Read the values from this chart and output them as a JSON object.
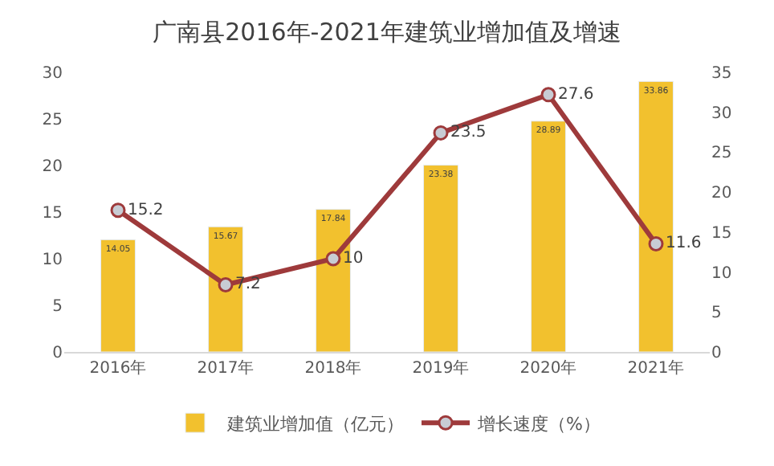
{
  "chart_data": {
    "type": "bar",
    "title": "广南县2016年-2021年建筑业增加值及增速",
    "categories": [
      "2016年",
      "2017年",
      "2018年",
      "2019年",
      "2020年",
      "2021年"
    ],
    "series": [
      {
        "name": "建筑业增加值（亿元）",
        "axis": "y2",
        "color": "#f2c12e",
        "values": [
          14.05,
          15.67,
          17.84,
          23.38,
          28.89,
          33.86
        ]
      },
      {
        "name": "增长速度（%）",
        "type": "line",
        "axis": "y",
        "color": "#9e3a3b",
        "values": [
          15.2,
          7.2,
          10,
          23.5,
          27.6,
          11.6
        ]
      }
    ],
    "ylim": [
      0,
      30
    ],
    "yticks": [
      0,
      5,
      10,
      15,
      20,
      25,
      30
    ],
    "y2lim": [
      0,
      35
    ],
    "y2ticks": [
      0,
      5,
      10,
      15,
      20,
      25,
      30,
      35
    ],
    "data_labels": true,
    "marker": "circle",
    "legend": "bottom",
    "grid": false
  }
}
